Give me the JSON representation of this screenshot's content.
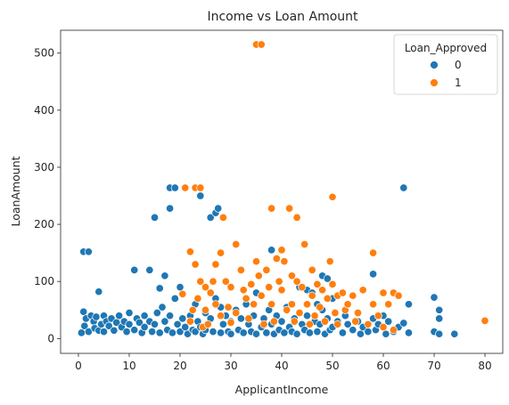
{
  "chart_data": {
    "type": "scatter",
    "title": "Income vs Loan Amount",
    "xlabel": "ApplicantIncome",
    "ylabel": "LoanAmount",
    "xlim": [
      -3.5,
      83.5
    ],
    "ylim": [
      -26,
      540
    ],
    "xticks": [
      0,
      10,
      20,
      30,
      40,
      50,
      60,
      70,
      80
    ],
    "yticks": [
      0,
      100,
      200,
      300,
      400,
      500
    ],
    "grid": false,
    "legend": {
      "title": "Loan_Approved",
      "placement": "top-right"
    },
    "series": [
      {
        "name": "0",
        "color": "#1f77b4",
        "points": [
          [
            0.6,
            10
          ],
          [
            1,
            47
          ],
          [
            1,
            152
          ],
          [
            1.2,
            22
          ],
          [
            1.5,
            35
          ],
          [
            2,
            152
          ],
          [
            2,
            12
          ],
          [
            2.5,
            40
          ],
          [
            3,
            30
          ],
          [
            3.2,
            18
          ],
          [
            3.5,
            38
          ],
          [
            4,
            82
          ],
          [
            4,
            14
          ],
          [
            4.5,
            25
          ],
          [
            5,
            40
          ],
          [
            5,
            12
          ],
          [
            5.5,
            30
          ],
          [
            6,
            22
          ],
          [
            6.5,
            35
          ],
          [
            7,
            14
          ],
          [
            7.5,
            28
          ],
          [
            8,
            40
          ],
          [
            8.5,
            20
          ],
          [
            9,
            30
          ],
          [
            9.5,
            12
          ],
          [
            10,
            45
          ],
          [
            10,
            25
          ],
          [
            11,
            120
          ],
          [
            11,
            15
          ],
          [
            11.5,
            35
          ],
          [
            12,
            28
          ],
          [
            12.5,
            10
          ],
          [
            13,
            20
          ],
          [
            13,
            40
          ],
          [
            14,
            120
          ],
          [
            14,
            30
          ],
          [
            14.5,
            12
          ],
          [
            15,
            212
          ],
          [
            15,
            25
          ],
          [
            15.5,
            45
          ],
          [
            16,
            88
          ],
          [
            16,
            10
          ],
          [
            16.5,
            55
          ],
          [
            17,
            110
          ],
          [
            17,
            30
          ],
          [
            17.5,
            15
          ],
          [
            18,
            228
          ],
          [
            18,
            264
          ],
          [
            18,
            40
          ],
          [
            18.5,
            10
          ],
          [
            19,
            264
          ],
          [
            19,
            70
          ],
          [
            19.5,
            25
          ],
          [
            20,
            90
          ],
          [
            20,
            12
          ],
          [
            20.5,
            35
          ],
          [
            21,
            20
          ],
          [
            21.5,
            8
          ],
          [
            22,
            40
          ],
          [
            22.5,
            15
          ],
          [
            23,
            60
          ],
          [
            23,
            12
          ],
          [
            23.5,
            30
          ],
          [
            24,
            250
          ],
          [
            24,
            20
          ],
          [
            24.5,
            8
          ],
          [
            25,
            45
          ],
          [
            25,
            15
          ],
          [
            26,
            212
          ],
          [
            26,
            35
          ],
          [
            26.5,
            12
          ],
          [
            27,
            220
          ],
          [
            27,
            70
          ],
          [
            27.5,
            228
          ],
          [
            28,
            55
          ],
          [
            28,
            10
          ],
          [
            28.5,
            25
          ],
          [
            29,
            40
          ],
          [
            29.5,
            12
          ],
          [
            30,
            30
          ],
          [
            30,
            8
          ],
          [
            31,
            50
          ],
          [
            31.5,
            15
          ],
          [
            32,
            35
          ],
          [
            32.5,
            10
          ],
          [
            33,
            60
          ],
          [
            33.5,
            25
          ],
          [
            34,
            12
          ],
          [
            34.5,
            40
          ],
          [
            35,
            8
          ],
          [
            35,
            80
          ],
          [
            36,
            20
          ],
          [
            36.5,
            35
          ],
          [
            37,
            10
          ],
          [
            37.5,
            50
          ],
          [
            38,
            155
          ],
          [
            38,
            25
          ],
          [
            38.5,
            8
          ],
          [
            39,
            40
          ],
          [
            39.5,
            15
          ],
          [
            40,
            30
          ],
          [
            40.5,
            10
          ],
          [
            41,
            55
          ],
          [
            41.5,
            20
          ],
          [
            42,
            12
          ],
          [
            42.5,
            35
          ],
          [
            43,
            8
          ],
          [
            43.5,
            90
          ],
          [
            44,
            25
          ],
          [
            44.5,
            15
          ],
          [
            45,
            85
          ],
          [
            45,
            40
          ],
          [
            45.5,
            10
          ],
          [
            46,
            80
          ],
          [
            46.5,
            30
          ],
          [
            47,
            60
          ],
          [
            47,
            12
          ],
          [
            47.5,
            25
          ],
          [
            48,
            110
          ],
          [
            48,
            50
          ],
          [
            48.5,
            8
          ],
          [
            49,
            105
          ],
          [
            49,
            35
          ],
          [
            49.5,
            15
          ],
          [
            50,
            70
          ],
          [
            50,
            20
          ],
          [
            51,
            30
          ],
          [
            52,
            10
          ],
          [
            52.5,
            40
          ],
          [
            53,
            25
          ],
          [
            54,
            15
          ],
          [
            55,
            30
          ],
          [
            55.5,
            8
          ],
          [
            56,
            20
          ],
          [
            57,
            12
          ],
          [
            58,
            113
          ],
          [
            58,
            35
          ],
          [
            58.5,
            15
          ],
          [
            59,
            25
          ],
          [
            60,
            40
          ],
          [
            60.5,
            8
          ],
          [
            61,
            30
          ],
          [
            62,
            12
          ],
          [
            63,
            20
          ],
          [
            64,
            264
          ],
          [
            64,
            27
          ],
          [
            65,
            10
          ],
          [
            65,
            60
          ],
          [
            70,
            72
          ],
          [
            70,
            12
          ],
          [
            71,
            50
          ],
          [
            71,
            35
          ],
          [
            71,
            8
          ],
          [
            74,
            8
          ]
        ]
      },
      {
        "name": "1",
        "color": "#ff7f0e",
        "points": [
          [
            20.5,
            78
          ],
          [
            21,
            264
          ],
          [
            22,
            152
          ],
          [
            22,
            30
          ],
          [
            22.5,
            50
          ],
          [
            23,
            264
          ],
          [
            23,
            130
          ],
          [
            23.5,
            70
          ],
          [
            24,
            264
          ],
          [
            24,
            100
          ],
          [
            24.5,
            20
          ],
          [
            25,
            90
          ],
          [
            25,
            50
          ],
          [
            25.5,
            25
          ],
          [
            26,
            80
          ],
          [
            26.5,
            100
          ],
          [
            27,
            130
          ],
          [
            27,
            60
          ],
          [
            28,
            150
          ],
          [
            28,
            40
          ],
          [
            28.5,
            212
          ],
          [
            29,
            100
          ],
          [
            29.5,
            55
          ],
          [
            30,
            90
          ],
          [
            30,
            28
          ],
          [
            31,
            165
          ],
          [
            31,
            45
          ],
          [
            32,
            120
          ],
          [
            32.5,
            85
          ],
          [
            33,
            70
          ],
          [
            33.5,
            35
          ],
          [
            34,
            95
          ],
          [
            34.5,
            60
          ],
          [
            35,
            515
          ],
          [
            35,
            135
          ],
          [
            35.5,
            110
          ],
          [
            36,
            515
          ],
          [
            36,
            75
          ],
          [
            36.5,
            25
          ],
          [
            37,
            120
          ],
          [
            37.5,
            90
          ],
          [
            38,
            228
          ],
          [
            38,
            60
          ],
          [
            38.5,
            30
          ],
          [
            39,
            140
          ],
          [
            39.5,
            100
          ],
          [
            40,
            155
          ],
          [
            40,
            85
          ],
          [
            40.5,
            135
          ],
          [
            41,
            50
          ],
          [
            41.5,
            228
          ],
          [
            42,
            110
          ],
          [
            42,
            60
          ],
          [
            42.5,
            30
          ],
          [
            43,
            212
          ],
          [
            43,
            100
          ],
          [
            43.5,
            45
          ],
          [
            44,
            90
          ],
          [
            44.5,
            165
          ],
          [
            45,
            60
          ],
          [
            45.5,
            25
          ],
          [
            46,
            120
          ],
          [
            46,
            75
          ],
          [
            46.5,
            40
          ],
          [
            47,
            95
          ],
          [
            47.5,
            55
          ],
          [
            48,
            85
          ],
          [
            48.5,
            30
          ],
          [
            49,
            70
          ],
          [
            49.5,
            135
          ],
          [
            50,
            248
          ],
          [
            50,
            95
          ],
          [
            50.5,
            45
          ],
          [
            51,
            75
          ],
          [
            51,
            25
          ],
          [
            52,
            80
          ],
          [
            52.5,
            50
          ],
          [
            53,
            60
          ],
          [
            54,
            75
          ],
          [
            54.5,
            30
          ],
          [
            55,
            45
          ],
          [
            56,
            85
          ],
          [
            57,
            25
          ],
          [
            58,
            150
          ],
          [
            58,
            60
          ],
          [
            59,
            40
          ],
          [
            60,
            80
          ],
          [
            60,
            20
          ],
          [
            61,
            60
          ],
          [
            62,
            80
          ],
          [
            62,
            15
          ],
          [
            63,
            75
          ],
          [
            80,
            31
          ]
        ]
      }
    ]
  }
}
